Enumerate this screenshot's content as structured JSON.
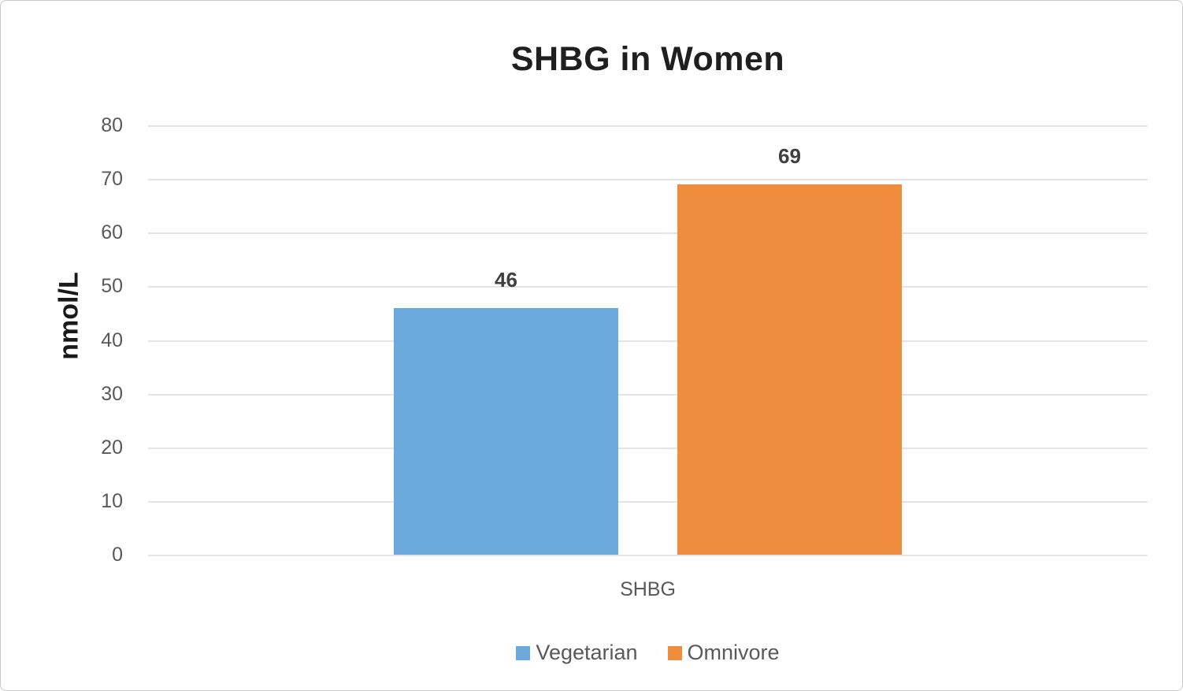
{
  "chart_data": {
    "type": "bar",
    "title": "SHBG in Women",
    "ylabel": "nmol/L",
    "xlabel": "",
    "categories": [
      "SHBG"
    ],
    "series": [
      {
        "name": "Vegetarian",
        "values": [
          46
        ],
        "color": "#6ca9dc"
      },
      {
        "name": "Omnivore",
        "values": [
          69
        ],
        "color": "#ef8c3d"
      }
    ],
    "ylim": [
      0,
      80
    ],
    "yticks": [
      0,
      10,
      20,
      30,
      40,
      50,
      60,
      70,
      80
    ],
    "grid": true,
    "legend_position": "bottom",
    "data_labels_shown": true
  }
}
